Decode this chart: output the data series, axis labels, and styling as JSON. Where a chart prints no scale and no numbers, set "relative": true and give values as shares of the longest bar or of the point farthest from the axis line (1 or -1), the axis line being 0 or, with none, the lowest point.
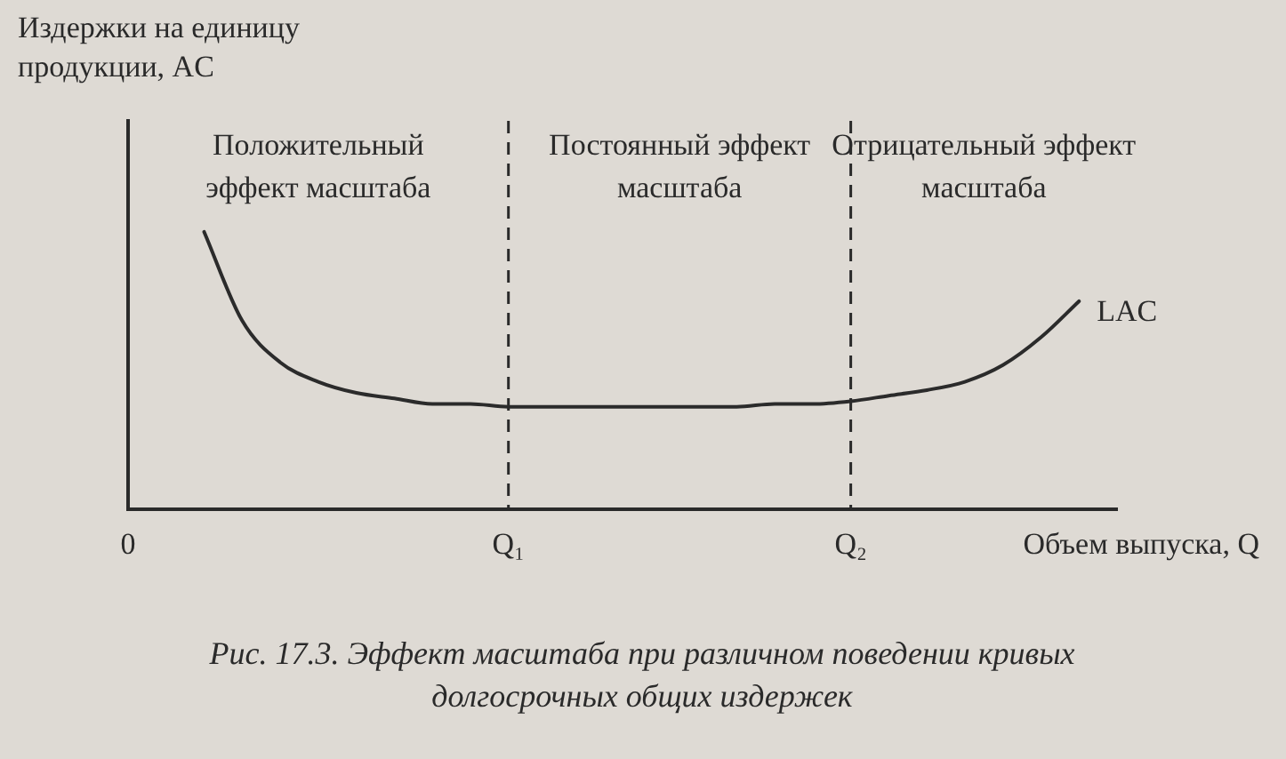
{
  "chart_data": {
    "type": "line",
    "relative": true,
    "ylabel": "Издержки на единицу продукции, AC",
    "xlabel": "Объем выпуска, Q",
    "title": "Рис. 17.3. Эффект масштаба при различном поведении кривых долгосрочных общих издержек",
    "categories": [
      "0",
      null,
      null,
      null,
      null,
      null,
      null,
      null,
      null,
      null,
      "Q₁",
      null,
      null,
      null,
      null,
      null,
      null,
      null,
      null,
      "Q₂",
      null,
      null,
      null,
      null,
      null,
      null,
      null
    ],
    "series": [
      {
        "name": "LAC",
        "color": "#2b2b2b",
        "values": [
          null,
          null,
          1,
          0.68,
          0.53,
          0.46,
          0.42,
          0.4,
          0.38,
          0.38,
          0.37,
          0.37,
          0.37,
          0.37,
          0.37,
          0.37,
          0.37,
          0.38,
          0.38,
          0.39,
          0.41,
          0.43,
          0.46,
          0.52,
          0.62,
          0.75,
          null
        ]
      }
    ],
    "ref_lines": [
      {
        "axis": "x",
        "value": "Q₁",
        "label": null,
        "line_style": "dashed"
      },
      {
        "axis": "x",
        "value": "Q₂",
        "label": null,
        "line_style": "dashed"
      }
    ],
    "annotations": [
      "Положительный эффект масштаба",
      "Постоянный эффект масштаба",
      "Отрицательный эффект масштаба"
    ],
    "grid": false,
    "legend": false,
    "marker": "none",
    "line_style": "solid"
  }
}
